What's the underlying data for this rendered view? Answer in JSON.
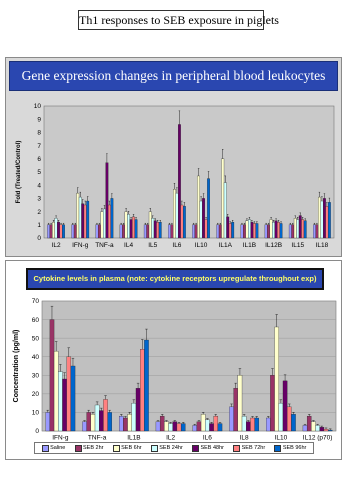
{
  "page_title": "Th1 responses to SEB exposure in piglets",
  "colors": {
    "series": [
      "#9999ff",
      "#993366",
      "#ffffcc",
      "#ccffff",
      "#660066",
      "#ff8080",
      "#0066cc"
    ],
    "banner_bg": "#2a47b0",
    "panel1_bg": "#d9d9d9"
  },
  "legend": [
    "Saline",
    "SEB 2hr",
    "SEB 6hr",
    "SEB 24hr",
    "SEB 48hr",
    "SEB 72hr",
    "SEB 96hr"
  ],
  "chart_data": [
    {
      "type": "bar",
      "title": "Gene expression changes in peripheral blood leukocytes",
      "ylabel": "Fold (Treated/Control)",
      "ylim": [
        0,
        10
      ],
      "yticks": [
        0,
        1,
        2,
        3,
        4,
        5,
        6,
        7,
        8,
        9,
        10
      ],
      "categories": [
        "IL2",
        "IFN-g",
        "TNF-a",
        "IL4",
        "IL5",
        "IL6",
        "IL10",
        "IL1A",
        "IL1B",
        "IL12B",
        "IL15",
        "IL18"
      ],
      "series": [
        {
          "name": "Saline",
          "values": [
            1,
            1,
            1,
            1,
            1,
            1,
            1,
            1,
            1,
            1,
            1,
            1
          ]
        },
        {
          "name": "SEB 2hr",
          "values": [
            1,
            1,
            1,
            1,
            1,
            1,
            1,
            1,
            1,
            1,
            1,
            1
          ]
        },
        {
          "name": "SEB 6hr",
          "values": [
            1.2,
            3.4,
            2.0,
            2.0,
            2.0,
            3.7,
            4.7,
            6.0,
            1.3,
            1.4,
            1.5,
            3.1
          ]
        },
        {
          "name": "SEB 24hr",
          "values": [
            1.5,
            3.1,
            2.2,
            1.8,
            1.5,
            3.4,
            2.8,
            4.2,
            1.4,
            1.2,
            1.4,
            2.8
          ]
        },
        {
          "name": "SEB 48hr",
          "values": [
            1.2,
            2.6,
            5.7,
            1.4,
            1.3,
            8.6,
            3.0,
            1.6,
            1.2,
            1.3,
            1.7,
            3.0
          ]
        },
        {
          "name": "SEB 72hr",
          "values": [
            1.0,
            2.5,
            2.5,
            1.6,
            1.2,
            2.5,
            1.4,
            1.1,
            1.1,
            1.2,
            1.4,
            2.4
          ]
        },
        {
          "name": "SEB 96hr",
          "values": [
            1.0,
            2.8,
            3.0,
            1.4,
            1.2,
            2.4,
            4.5,
            1.2,
            1.1,
            1.1,
            1.3,
            2.7
          ]
        }
      ]
    },
    {
      "type": "bar",
      "title": "Cytokine levels in plasma (note: cytokine receptors upregulate throughout exp)",
      "ylabel": "Concentration (pg/ml)",
      "ylim": [
        0,
        70
      ],
      "yticks": [
        0,
        10,
        20,
        30,
        40,
        50,
        60,
        70
      ],
      "categories": [
        "IFN-g",
        "TNF-a",
        "IL1B",
        "IL2",
        "IL6",
        "IL8",
        "IL10",
        "IL12 (p70)"
      ],
      "series": [
        {
          "name": "Saline",
          "values": [
            10,
            5,
            8,
            5,
            3,
            13,
            7,
            3
          ]
        },
        {
          "name": "SEB 2hr",
          "values": [
            60,
            10,
            7,
            8,
            5,
            23,
            30,
            8
          ]
        },
        {
          "name": "SEB 6hr",
          "values": [
            43,
            9,
            9,
            5,
            9,
            30,
            56,
            5
          ]
        },
        {
          "name": "SEB 24hr",
          "values": [
            32,
            14,
            15,
            4,
            6,
            8,
            15,
            3
          ]
        },
        {
          "name": "SEB 48hr",
          "values": [
            28,
            11,
            23,
            5,
            4,
            5,
            27,
            2
          ]
        },
        {
          "name": "SEB 72hr",
          "values": [
            40,
            17,
            44,
            4,
            8,
            7,
            13,
            1
          ]
        },
        {
          "name": "SEB 96hr",
          "values": [
            35,
            10,
            49,
            4,
            4,
            7,
            9,
            0.5
          ]
        }
      ]
    }
  ]
}
